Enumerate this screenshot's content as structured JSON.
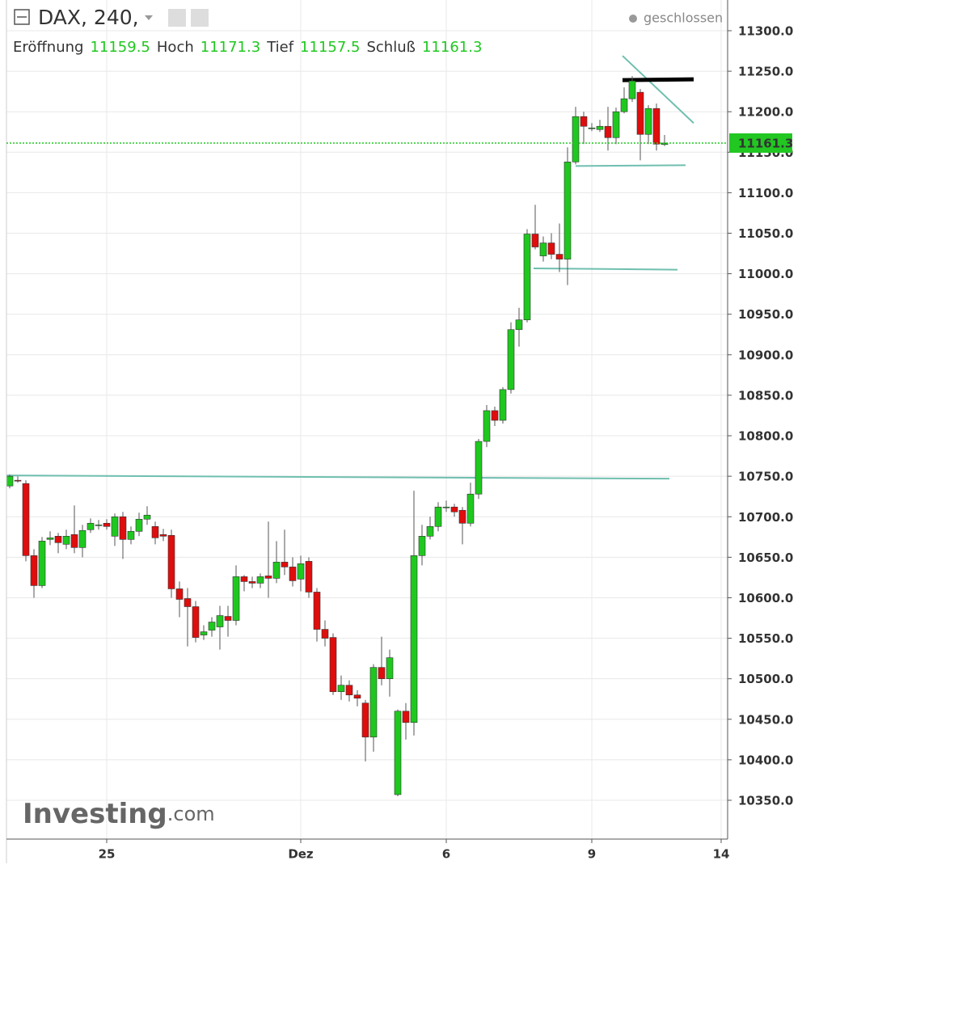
{
  "chart_data": {
    "type": "candlestick",
    "title": "DAX, 240,",
    "status": "geschlossen",
    "ohlc_labels": [
      "Eröffnung",
      "Hoch",
      "Tief",
      "Schluß"
    ],
    "watermark": "Investing",
    "watermark_suffix": ".com",
    "up_color": "#1fc81f",
    "down_color": "#e00d0d",
    "last_price_color": "#22c722",
    "trend_line_color": "#6fbfb0",
    "grid": true,
    "xlim": [
      -0.4,
      88.8
    ],
    "ylim": [
      10302.1,
      11337.9
    ],
    "xticks": [
      {
        "value": 12,
        "label": "25"
      },
      {
        "value": 36,
        "label": "Dez"
      },
      {
        "value": 54,
        "label": "6"
      },
      {
        "value": 72,
        "label": "9"
      },
      {
        "value": 88,
        "label": "14"
      }
    ],
    "yticks": [
      {
        "value": 10350,
        "label": "10350.0"
      },
      {
        "value": 10400,
        "label": "10400.0"
      },
      {
        "value": 10450,
        "label": "10450.0"
      },
      {
        "value": 10500,
        "label": "10500.0"
      },
      {
        "value": 10550,
        "label": "10550.0"
      },
      {
        "value": 10600,
        "label": "10600.0"
      },
      {
        "value": 10650,
        "label": "10650.0"
      },
      {
        "value": 10700,
        "label": "10700.0"
      },
      {
        "value": 10750,
        "label": "10750.0"
      },
      {
        "value": 10800,
        "label": "10800.0"
      },
      {
        "value": 10850,
        "label": "10850.0"
      },
      {
        "value": 10900,
        "label": "10900.0"
      },
      {
        "value": 10950,
        "label": "10950.0"
      },
      {
        "value": 11000,
        "label": "11000.0"
      },
      {
        "value": 11050,
        "label": "11050.0"
      },
      {
        "value": 11100,
        "label": "11100.0"
      },
      {
        "value": 11150,
        "label": "11150.0"
      },
      {
        "value": 11200,
        "label": "11200.0"
      },
      {
        "value": 11250,
        "label": "11250.0"
      },
      {
        "value": 11300,
        "label": "11300.0"
      }
    ],
    "open": [
      10738,
      10745,
      10741,
      10652,
      10615,
      10672,
      10676,
      10666,
      10678,
      10662,
      10684,
      10690,
      10692,
      10676,
      10700,
      10672,
      10682,
      10697,
      10688,
      10678,
      10677,
      10611,
      10599,
      10589,
      10554,
      10560,
      10564,
      10577,
      10572,
      10626,
      10620,
      10618,
      10627,
      10624,
      10644,
      10638,
      10623,
      10645,
      10607,
      10561,
      10551,
      10484,
      10492,
      10480,
      10470,
      10428,
      10514,
      10500,
      10357,
      10460,
      10446,
      10652,
      10676,
      10688,
      10712,
      10712,
      10708,
      10692,
      10728,
      10793,
      10831,
      10819,
      10857,
      10931,
      10943,
      11049,
      11022,
      11038,
      11024,
      11018,
      11138,
      11194,
      11180,
      11178,
      11182,
      11168,
      11200,
      11216,
      11224,
      11172,
      11204,
      11159.5
    ],
    "high": [
      10752,
      10750,
      10745,
      10660,
      10675,
      10682,
      10680,
      10684,
      10714,
      10690,
      10698,
      10696,
      10697,
      10704,
      10706,
      10688,
      10705,
      10713,
      10694,
      10685,
      10684,
      10620,
      10612,
      10596,
      10566,
      10576,
      10590,
      10590,
      10640,
      10628,
      10626,
      10630,
      10694,
      10670,
      10684,
      10650,
      10652,
      10650,
      10612,
      10572,
      10556,
      10504,
      10498,
      10486,
      10474,
      10518,
      10552,
      10536,
      10462,
      10470,
      10732,
      10690,
      10700,
      10718,
      10720,
      10716,
      10712,
      10742,
      10796,
      10838,
      10836,
      10860,
      10940,
      10958,
      11055,
      11085,
      11046,
      11050,
      11062,
      11156,
      11206,
      11200,
      11186,
      11190,
      11206,
      11205,
      11230,
      11244,
      11228,
      11208,
      11210,
      11171.3
    ],
    "low": [
      10735,
      10742,
      10645,
      10600,
      10612,
      10665,
      10655,
      10660,
      10655,
      10650,
      10680,
      10684,
      10684,
      10664,
      10648,
      10666,
      10676,
      10690,
      10666,
      10670,
      10600,
      10576,
      10540,
      10545,
      10548,
      10552,
      10536,
      10552,
      10566,
      10608,
      10612,
      10612,
      10600,
      10618,
      10628,
      10614,
      10608,
      10600,
      10546,
      10540,
      10480,
      10474,
      10472,
      10466,
      10398,
      10410,
      10492,
      10478,
      10355,
      10425,
      10430,
      10640,
      10672,
      10682,
      10706,
      10700,
      10666,
      10688,
      10722,
      10786,
      10812,
      10815,
      10852,
      10910,
      10940,
      11030,
      11015,
      11018,
      11002,
      10986,
      11135,
      11160,
      11176,
      11175,
      11152,
      11160,
      11198,
      11212,
      11140,
      11160,
      11152,
      11157.5
    ],
    "close": [
      10750,
      10744,
      10652,
      10615,
      10670,
      10674,
      10668,
      10676,
      10662,
      10683,
      10692,
      10690,
      10688,
      10700,
      10672,
      10682,
      10697,
      10702,
      10674,
      10676,
      10611,
      10598,
      10589,
      10551,
      10558,
      10570,
      10578,
      10572,
      10626,
      10620,
      10618,
      10626,
      10624,
      10644,
      10638,
      10621,
      10642,
      10607,
      10561,
      10550,
      10484,
      10492,
      10480,
      10476,
      10428,
      10514,
      10500,
      10526,
      10460,
      10446,
      10652,
      10676,
      10688,
      10712,
      10712,
      10706,
      10692,
      10728,
      10793,
      10831,
      10819,
      10857,
      10931,
      10943,
      11049,
      11033,
      11038,
      11024,
      11018,
      11138,
      11194,
      11182,
      11180,
      11182,
      11168,
      11200,
      11216,
      11238,
      11172,
      11204,
      11160,
      11161.3
    ],
    "trend_lines": [
      {
        "x": [
          -0.4,
          81.6
        ],
        "y": [
          10751,
          10747
        ],
        "width": 2
      },
      {
        "x": [
          64.8,
          82.6
        ],
        "y": [
          11006.6,
          11005
        ],
        "width": 2
      },
      {
        "x": [
          70,
          83.6
        ],
        "y": [
          11133,
          11134
        ],
        "width": 2
      },
      {
        "x": [
          75.8,
          84.6
        ],
        "y": [
          11269,
          11186
        ],
        "width": 2
      },
      {
        "x": [
          75.8,
          84.6
        ],
        "y": [
          11239,
          11240
        ],
        "width": 5,
        "color": "#000000"
      }
    ]
  }
}
